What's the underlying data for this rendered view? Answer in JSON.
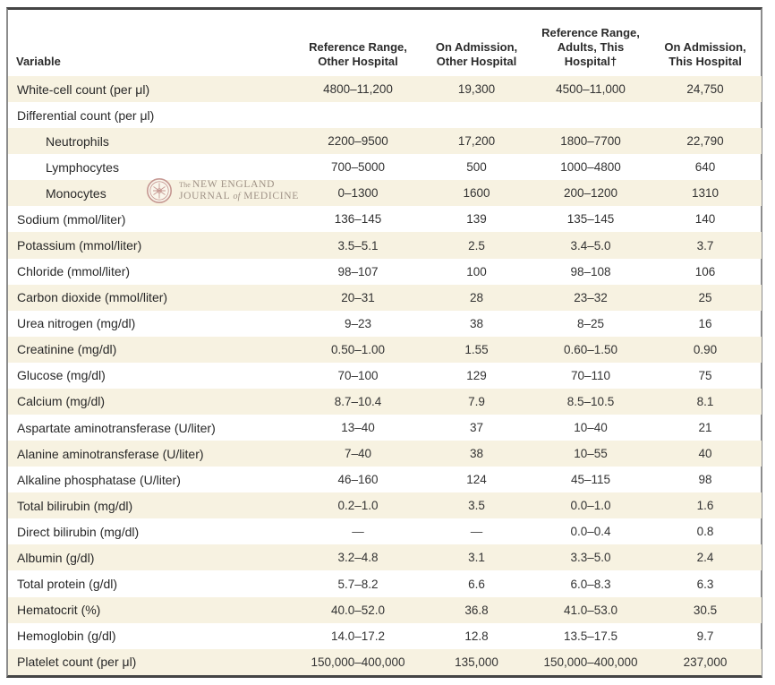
{
  "colors": {
    "row_shade": "#f7f2e1",
    "frame_dark": "#454545",
    "frame_side": "#8c8c8c",
    "logo_text": "#96887d",
    "logo_seal": "#c08e89"
  },
  "watermark": {
    "the": "The",
    "new_england": "NEW ENGLAND",
    "journal": "JOURNAL",
    "of": "of",
    "medicine": "MEDICINE"
  },
  "table": {
    "columns": [
      "Variable",
      "Reference Range,\nOther Hospital",
      "On Admission,\nOther Hospital",
      "Reference Range,\nAdults, This\nHospital†",
      "On Admission,\nThis Hospital"
    ],
    "rows": [
      {
        "label": "White-cell count (per μl)",
        "indent": false,
        "values": [
          "4800–11,200",
          "19,300",
          "4500–11,000",
          "24,750"
        ]
      },
      {
        "label": "Differential count (per μl)",
        "indent": false,
        "values": [
          "",
          "",
          "",
          ""
        ]
      },
      {
        "label": "Neutrophils",
        "indent": true,
        "values": [
          "2200–9500",
          "17,200",
          "1800–7700",
          "22,790"
        ]
      },
      {
        "label": "Lymphocytes",
        "indent": true,
        "values": [
          "700–5000",
          "500",
          "1000–4800",
          "640"
        ]
      },
      {
        "label": "Monocytes",
        "indent": true,
        "values": [
          "0–1300",
          "1600",
          "200–1200",
          "1310"
        ]
      },
      {
        "label": "Sodium (mmol/liter)",
        "indent": false,
        "values": [
          "136–145",
          "139",
          "135–145",
          "140"
        ]
      },
      {
        "label": "Potassium (mmol/liter)",
        "indent": false,
        "values": [
          "3.5–5.1",
          "2.5",
          "3.4–5.0",
          "3.7"
        ]
      },
      {
        "label": "Chloride (mmol/liter)",
        "indent": false,
        "values": [
          "98–107",
          "100",
          "98–108",
          "106"
        ]
      },
      {
        "label": "Carbon dioxide (mmol/liter)",
        "indent": false,
        "values": [
          "20–31",
          "28",
          "23–32",
          "25"
        ]
      },
      {
        "label": "Urea nitrogen (mg/dl)",
        "indent": false,
        "values": [
          "9–23",
          "38",
          "8–25",
          "16"
        ]
      },
      {
        "label": "Creatinine (mg/dl)",
        "indent": false,
        "values": [
          "0.50–1.00",
          "1.55",
          "0.60–1.50",
          "0.90"
        ]
      },
      {
        "label": "Glucose (mg/dl)",
        "indent": false,
        "values": [
          "70–100",
          "129",
          "70–110",
          "75"
        ]
      },
      {
        "label": "Calcium (mg/dl)",
        "indent": false,
        "values": [
          "8.7–10.4",
          "7.9",
          "8.5–10.5",
          "8.1"
        ]
      },
      {
        "label": "Aspartate aminotransferase (U/liter)",
        "indent": false,
        "values": [
          "13–40",
          "37",
          "10–40",
          "21"
        ]
      },
      {
        "label": "Alanine aminotransferase (U/liter)",
        "indent": false,
        "values": [
          "7–40",
          "38",
          "10–55",
          "40"
        ]
      },
      {
        "label": "Alkaline phosphatase (U/liter)",
        "indent": false,
        "values": [
          "46–160",
          "124",
          "45–115",
          "98"
        ]
      },
      {
        "label": "Total bilirubin (mg/dl)",
        "indent": false,
        "values": [
          "0.2–1.0",
          "3.5",
          "0.0–1.0",
          "1.6"
        ]
      },
      {
        "label": "Direct bilirubin (mg/dl)",
        "indent": false,
        "values": [
          "—",
          "—",
          "0.0–0.4",
          "0.8"
        ]
      },
      {
        "label": "Albumin (g/dl)",
        "indent": false,
        "values": [
          "3.2–4.8",
          "3.1",
          "3.3–5.0",
          "2.4"
        ]
      },
      {
        "label": "Total protein (g/dl)",
        "indent": false,
        "values": [
          "5.7–8.2",
          "6.6",
          "6.0–8.3",
          "6.3"
        ]
      },
      {
        "label": "Hematocrit (%)",
        "indent": false,
        "values": [
          "40.0–52.0",
          "36.8",
          "41.0–53.0",
          "30.5"
        ]
      },
      {
        "label": "Hemoglobin (g/dl)",
        "indent": false,
        "values": [
          "14.0–17.2",
          "12.8",
          "13.5–17.5",
          "9.7"
        ]
      },
      {
        "label": "Platelet count (per μl)",
        "indent": false,
        "values": [
          "150,000–400,000",
          "135,000",
          "150,000–400,000",
          "237,000"
        ]
      }
    ]
  }
}
